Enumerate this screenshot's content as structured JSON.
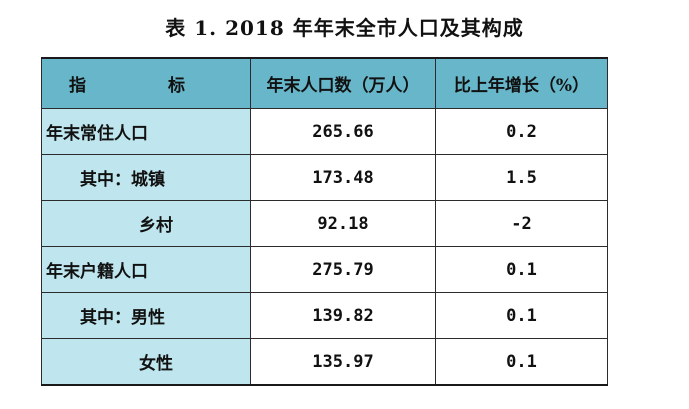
{
  "title": "表 1. 2018 年年末全市人口及其构成",
  "header": {
    "col_indicator": "指 标",
    "col_population": "年末人口数（万人）",
    "col_growth": "比上年增长（%）"
  },
  "rows": [
    {
      "label": "年末常住人口",
      "population": "265.66",
      "growth": "0.2"
    },
    {
      "label": "其中：城镇",
      "population": "173.48",
      "growth": "1.5"
    },
    {
      "label": "乡村",
      "population": "92.18",
      "growth": "-2"
    },
    {
      "label": "年末户籍人口",
      "population": "275.79",
      "growth": "0.1"
    },
    {
      "label": "其中：男性",
      "population": "139.82",
      "growth": "0.1"
    },
    {
      "label": "女性",
      "population": "135.97",
      "growth": "0.1"
    }
  ]
}
